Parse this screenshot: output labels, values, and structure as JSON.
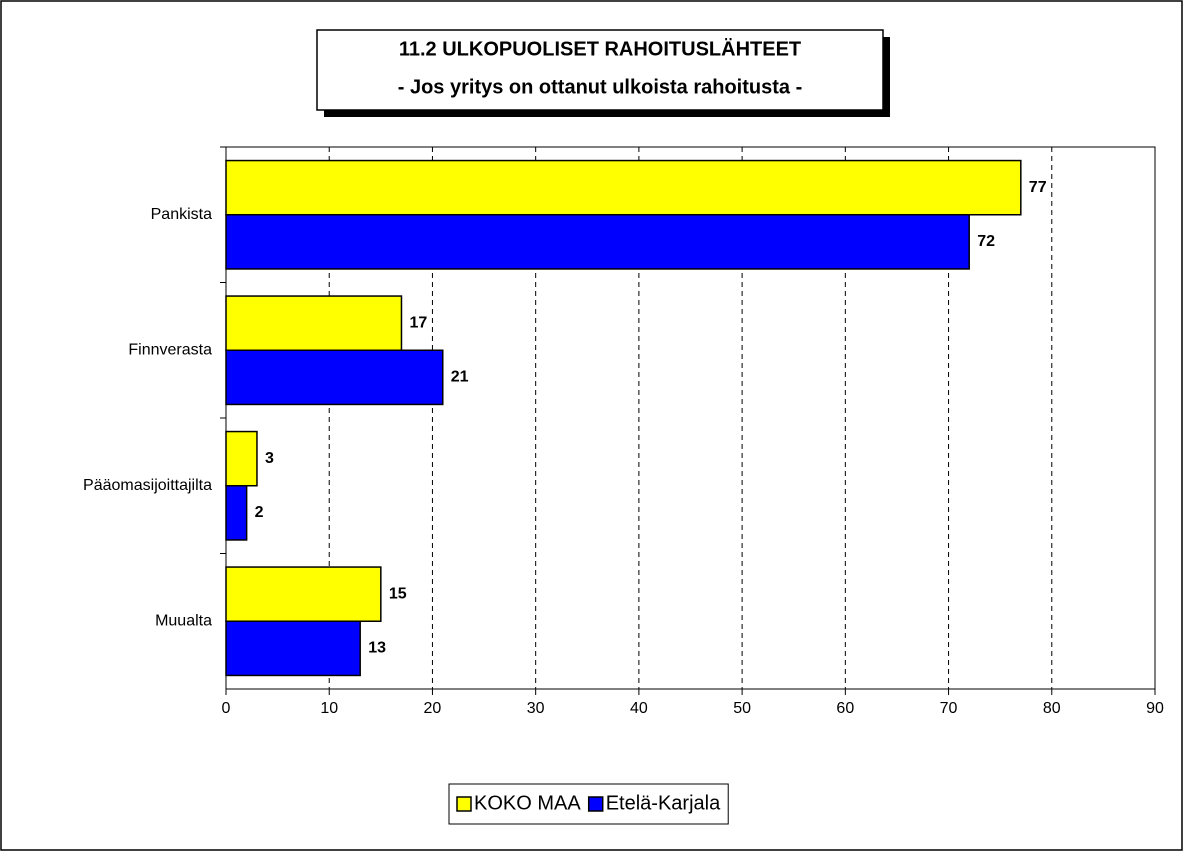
{
  "chart_data": {
    "type": "bar",
    "orientation": "horizontal",
    "title": "11.2 ULKOPUOLISET RAHOITUSLÄHTEET",
    "subtitle": "- Jos yritys on ottanut ulkoista rahoitusta -",
    "categories": [
      "Pankista",
      "Finnverasta",
      "Pääomasijoittajilta",
      "Muualta"
    ],
    "series": [
      {
        "name": "KOKO MAA",
        "color": "#ffff00",
        "values": [
          77,
          17,
          3,
          15
        ]
      },
      {
        "name": "Etelä-Karjala",
        "color": "#0000ff",
        "values": [
          72,
          21,
          2,
          13
        ]
      }
    ],
    "xlim": [
      0,
      90
    ],
    "xticks": [
      0,
      10,
      20,
      30,
      40,
      50,
      60,
      70,
      80,
      90
    ],
    "grid": true,
    "legend": "bottom"
  }
}
